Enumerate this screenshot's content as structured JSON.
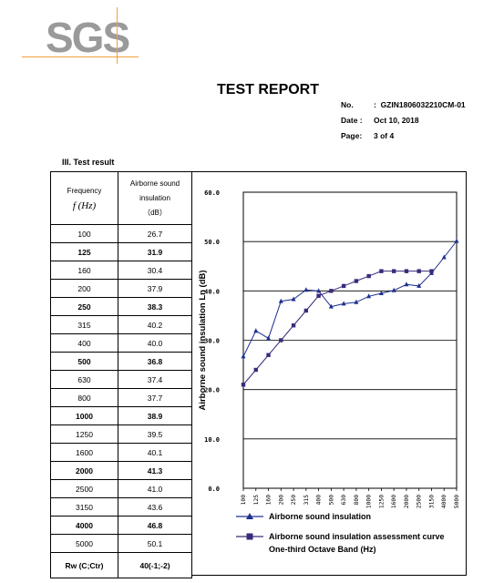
{
  "logo": {
    "text": "SGS"
  },
  "header": {
    "title": "TEST REPORT",
    "no_label": "No.",
    "no_value": "GZIN1806032210CM-01",
    "date_label": "Date :",
    "date_value": "Oct 10, 2018",
    "page_label": "Page:",
    "page_value": "3 of  4"
  },
  "section": {
    "title": "III.  Test result"
  },
  "table": {
    "col1_header_line1": "Frequency",
    "col1_header_line2": "f (Hz)",
    "col2_header_line1": "Airborne sound",
    "col2_header_line2": "insulation",
    "col2_header_line3": "（dB）",
    "rows": [
      {
        "freq": "100",
        "value": "26.7",
        "bold": false
      },
      {
        "freq": "125",
        "value": "31.9",
        "bold": true
      },
      {
        "freq": "160",
        "value": "30.4",
        "bold": false
      },
      {
        "freq": "200",
        "value": "37.9",
        "bold": false
      },
      {
        "freq": "250",
        "value": "38.3",
        "bold": true
      },
      {
        "freq": "315",
        "value": "40.2",
        "bold": false
      },
      {
        "freq": "400",
        "value": "40.0",
        "bold": false
      },
      {
        "freq": "500",
        "value": "36.8",
        "bold": true
      },
      {
        "freq": "630",
        "value": "37.4",
        "bold": false
      },
      {
        "freq": "800",
        "value": "37.7",
        "bold": false
      },
      {
        "freq": "1000",
        "value": "38.9",
        "bold": true
      },
      {
        "freq": "1250",
        "value": "39.5",
        "bold": false
      },
      {
        "freq": "1600",
        "value": "40.1",
        "bold": false
      },
      {
        "freq": "2000",
        "value": "41.3",
        "bold": true
      },
      {
        "freq": "2500",
        "value": "41.0",
        "bold": false
      },
      {
        "freq": "3150",
        "value": "43.6",
        "bold": false
      },
      {
        "freq": "4000",
        "value": "46.8",
        "bold": true
      },
      {
        "freq": "5000",
        "value": "50.1",
        "bold": false
      }
    ],
    "footer_label": "Rw (C;Ctr)",
    "footer_value": "40(-1;-2)"
  },
  "chart_data": {
    "type": "line",
    "ylabel": "Airborne sound insulation  Ln (dB)",
    "xlabel": "One-third Octave Band (Hz)",
    "ylim": [
      0,
      60
    ],
    "yticks": [
      "0.0",
      "10.0",
      "20.0",
      "30.0",
      "40.0",
      "50.0",
      "60.0"
    ],
    "categories": [
      "100",
      "125",
      "160",
      "200",
      "250",
      "315",
      "400",
      "500",
      "630",
      "800",
      "1000",
      "1250",
      "1600",
      "2000",
      "2500",
      "3150",
      "4000",
      "5000"
    ],
    "grid": true,
    "legend_position": "bottom",
    "series": [
      {
        "name": "Airborne sound insulation",
        "color": "#1f2f8f",
        "marker": "triangle",
        "values": [
          26.7,
          31.9,
          30.4,
          37.9,
          38.3,
          40.2,
          40.0,
          36.8,
          37.4,
          37.7,
          38.9,
          39.5,
          40.1,
          41.3,
          41.0,
          43.6,
          46.8,
          50.1
        ]
      },
      {
        "name": "Airborne sound insulation assessment curve",
        "color": "#3b2a7a",
        "marker": "square",
        "values": [
          21,
          24,
          27,
          30,
          33,
          36,
          39,
          40,
          41,
          42,
          43,
          44,
          44,
          44,
          44,
          44,
          null,
          null
        ]
      }
    ]
  }
}
